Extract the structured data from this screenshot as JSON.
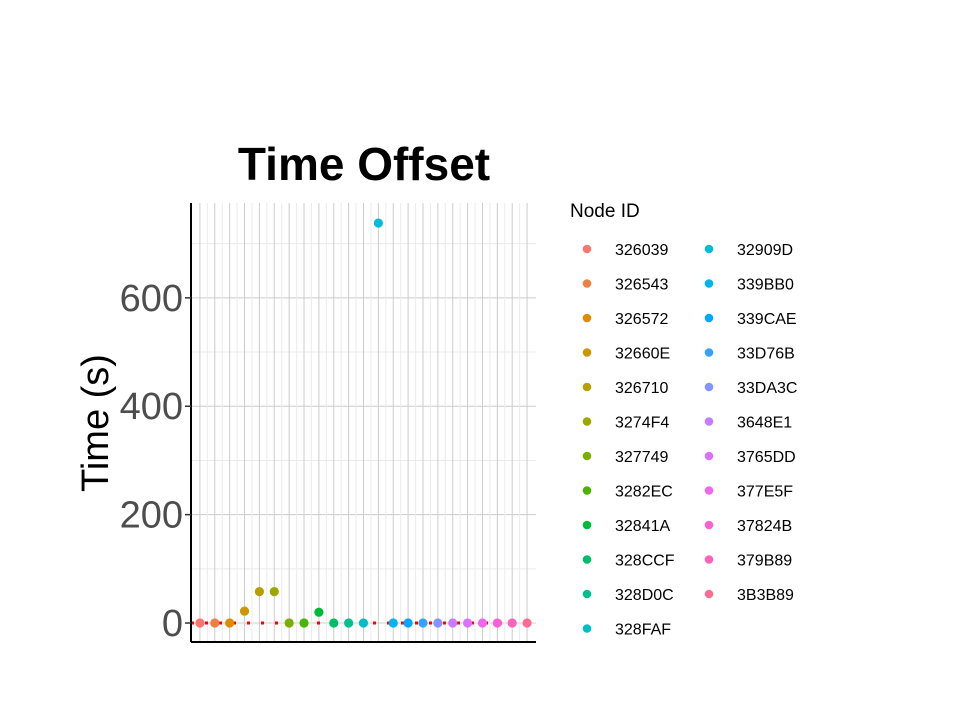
{
  "chart_data": {
    "type": "scatter",
    "title": "Time Offset",
    "xlabel": "",
    "ylabel": "Time (s)",
    "ylim": [
      -35,
      775
    ],
    "yticks": [
      0,
      200,
      400,
      600
    ],
    "grid": true,
    "legend": {
      "title": "Node ID",
      "placement": "right",
      "columns": 2
    },
    "reference_line": {
      "y": 0,
      "style": "dotted",
      "color": "#ff0000"
    },
    "series": [
      {
        "name": "326039",
        "color": "#F8766D",
        "x": 1,
        "y": 0
      },
      {
        "name": "326543",
        "color": "#EE8044",
        "x": 2,
        "y": 0
      },
      {
        "name": "326572",
        "color": "#DE8C00",
        "x": 3,
        "y": 0
      },
      {
        "name": "32660E",
        "color": "#CD9600",
        "x": 4,
        "y": 22
      },
      {
        "name": "326710",
        "color": "#B79F00",
        "x": 5,
        "y": 58
      },
      {
        "name": "3274F4",
        "color": "#9DA700",
        "x": 6,
        "y": 58
      },
      {
        "name": "327749",
        "color": "#7CAE00",
        "x": 7,
        "y": 0
      },
      {
        "name": "3282EC",
        "color": "#49B500",
        "x": 8,
        "y": 0
      },
      {
        "name": "32841A",
        "color": "#00BA38",
        "x": 9,
        "y": 20
      },
      {
        "name": "328CCF",
        "color": "#00BE67",
        "x": 10,
        "y": 0
      },
      {
        "name": "328D0C",
        "color": "#00C08B",
        "x": 11,
        "y": 0
      },
      {
        "name": "328FAF",
        "color": "#00BFC4",
        "x": 12,
        "y": 0
      },
      {
        "name": "32909D",
        "color": "#00BCD8",
        "x": 13,
        "y": 738
      },
      {
        "name": "339BB0",
        "color": "#00B4EF",
        "x": 14,
        "y": 0
      },
      {
        "name": "339CAE",
        "color": "#00A9FF",
        "x": 15,
        "y": 0
      },
      {
        "name": "33D76B",
        "color": "#35A2FF",
        "x": 16,
        "y": 0
      },
      {
        "name": "33DA3C",
        "color": "#8494FF",
        "x": 17,
        "y": 0
      },
      {
        "name": "3648E1",
        "color": "#C77CFF",
        "x": 18,
        "y": 0
      },
      {
        "name": "3765DD",
        "color": "#DB72FB",
        "x": 19,
        "y": 0
      },
      {
        "name": "377E5F",
        "color": "#ED68ED",
        "x": 20,
        "y": 0
      },
      {
        "name": "37824B",
        "color": "#FB61D7",
        "x": 21,
        "y": 0
      },
      {
        "name": "379B89",
        "color": "#FF62BC",
        "x": 22,
        "y": 0
      },
      {
        "name": "3B3B89",
        "color": "#FF6C91",
        "x": 23,
        "y": 0
      }
    ]
  }
}
